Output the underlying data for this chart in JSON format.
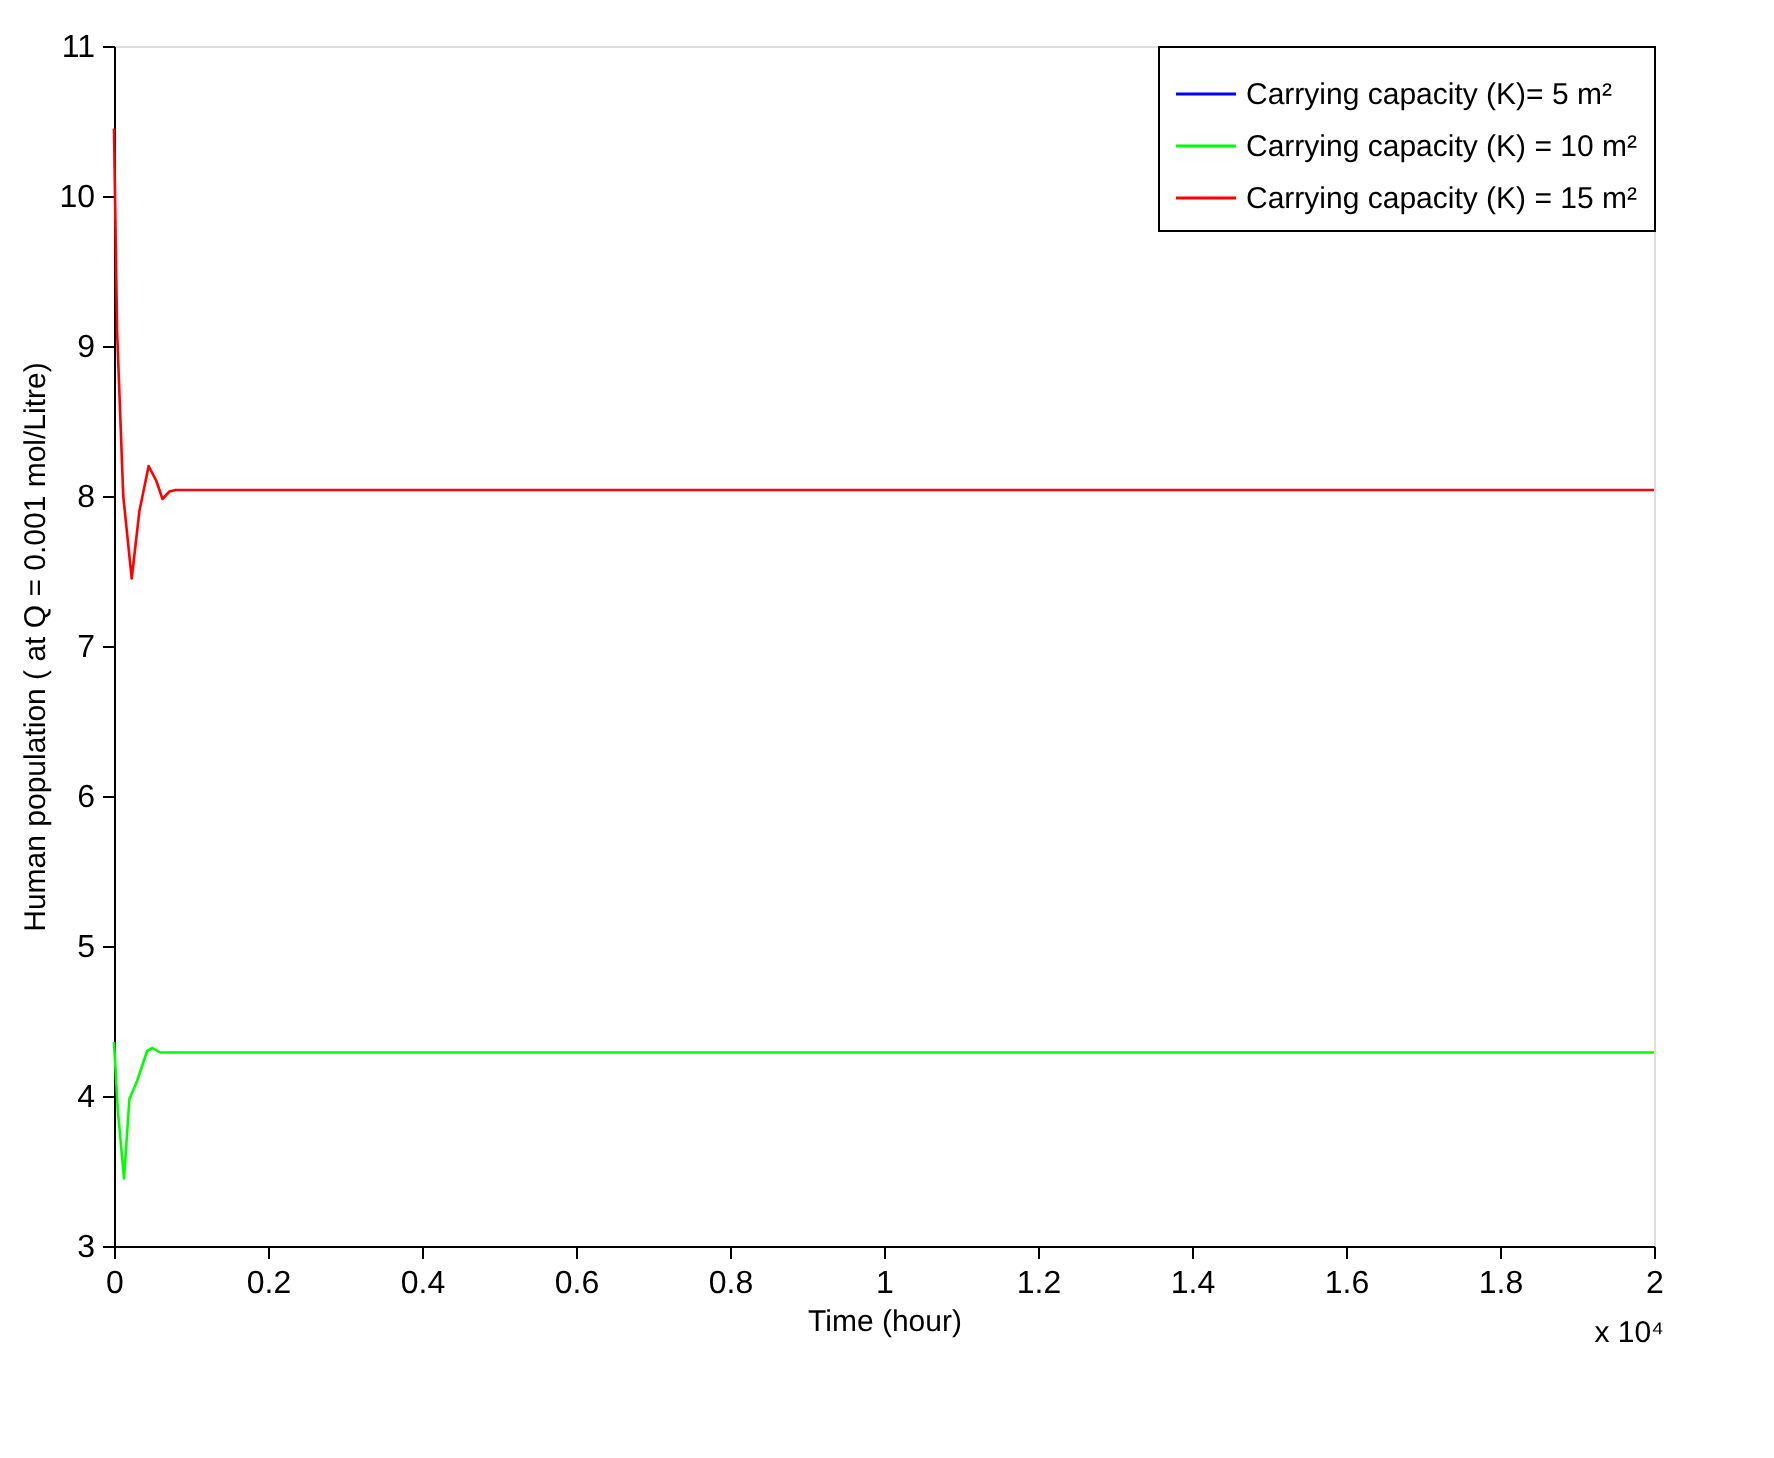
{
  "chart_data": {
    "type": "line",
    "xlabel": "Time (hour)",
    "ylabel": "Human population ( at Q = 0.001 mol/Litre)",
    "annotations": [
      "x 10⁴"
    ],
    "xlim": [
      0,
      2
    ],
    "xticks": [
      0,
      0.2,
      0.4,
      0.6,
      0.8,
      1,
      1.2,
      1.4,
      1.6,
      1.8,
      2
    ],
    "ylim": [
      3,
      11
    ],
    "yticks": [
      3,
      4,
      5,
      6,
      7,
      8,
      9,
      10,
      11
    ],
    "grid": false,
    "legend": "top right",
    "line_style": "solid",
    "marker": "none",
    "series": [
      {
        "name": "Carrying capacity (K)= 5 m²",
        "color": "#0000ff"
      },
      {
        "name": "Carrying capacity (K) = 10 m²",
        "color": "#00ff00",
        "x": [
          0,
          0.005,
          0.013,
          0.02,
          0.03,
          0.043,
          0.05,
          0.06,
          0.1,
          0.5,
          1,
          1.5,
          2
        ],
        "values": [
          4.36,
          3.9,
          3.45,
          3.98,
          4.1,
          4.3,
          4.32,
          4.29,
          4.29,
          4.29,
          4.29,
          4.29,
          4.29
        ]
      },
      {
        "name": "Carrying capacity (K) = 15 m²",
        "color": "#ff0000",
        "x": [
          0,
          0.004,
          0.012,
          0.023,
          0.033,
          0.045,
          0.055,
          0.063,
          0.072,
          0.08,
          0.5,
          1,
          1.5,
          2
        ],
        "values": [
          10.45,
          9.1,
          8.0,
          7.45,
          7.9,
          8.2,
          8.1,
          7.98,
          8.03,
          8.04,
          8.04,
          8.04,
          8.04,
          8.04
        ]
      }
    ]
  }
}
